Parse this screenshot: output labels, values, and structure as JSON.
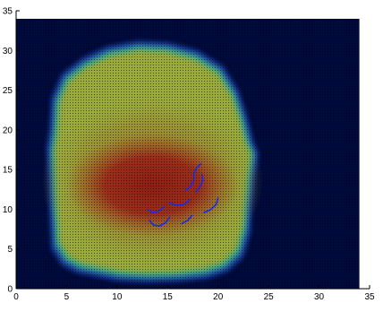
{
  "chart_data": {
    "type": "heatmap",
    "title": "",
    "xlabel": "",
    "ylabel": "",
    "xlim": [
      0,
      35
    ],
    "ylim": [
      0,
      35
    ],
    "x_ticks": [
      0,
      5,
      10,
      15,
      20,
      25,
      30,
      35
    ],
    "y_ticks": [
      0,
      5,
      10,
      15,
      20,
      25,
      30,
      35
    ],
    "x_tick_labels": [
      "0",
      "5",
      "10",
      "15",
      "20",
      "25",
      "30",
      "35"
    ],
    "y_tick_labels": [
      "0",
      "5",
      "10",
      "15",
      "20",
      "25",
      "30",
      "35"
    ],
    "grid": true,
    "data_extent": {
      "x": [
        0,
        34
      ],
      "y": [
        0,
        34
      ]
    },
    "background_color": "#000a3c",
    "colormap": [
      "#000f5a",
      "#1e4ab4",
      "#3caa8c",
      "#9aaa3a",
      "#b48c28",
      "#a0501e",
      "#8c1e14"
    ],
    "region": {
      "description_free": true,
      "outer_boundary": [
        [
          3.5,
          5
        ],
        [
          4.5,
          3
        ],
        [
          6,
          2
        ],
        [
          8,
          1.5
        ],
        [
          10,
          1
        ],
        [
          13,
          0.8
        ],
        [
          16,
          0.9
        ],
        [
          19,
          1.3
        ],
        [
          21,
          2.2
        ],
        [
          22.5,
          4
        ],
        [
          23.2,
          7
        ],
        [
          23.3,
          10
        ],
        [
          23.6,
          14
        ],
        [
          24,
          17
        ],
        [
          23.5,
          18.5
        ],
        [
          22.8,
          22
        ],
        [
          22,
          25
        ],
        [
          20.5,
          28
        ],
        [
          18,
          30
        ],
        [
          15,
          31
        ],
        [
          12,
          31.2
        ],
        [
          9,
          30.5
        ],
        [
          6.5,
          29
        ],
        [
          4.5,
          27
        ],
        [
          3.5,
          24
        ],
        [
          3.3,
          20
        ],
        [
          3,
          17.5
        ],
        [
          3.2,
          14
        ],
        [
          3.3,
          10
        ],
        [
          3.4,
          7
        ]
      ],
      "hot_core": {
        "cx": 13.5,
        "cy": 13,
        "rx": 8.5,
        "ry": 6.5,
        "value": 1.0
      },
      "warm_band": {
        "cx": 13.5,
        "cy": 13.5,
        "rx": 11,
        "ry": 11,
        "value": 0.6
      }
    },
    "contours": [
      {
        "points": [
          [
            13.2,
            8.6
          ],
          [
            13.6,
            8.0
          ],
          [
            14.2,
            7.9
          ],
          [
            14.8,
            8.3
          ],
          [
            15.2,
            9.0
          ]
        ]
      },
      {
        "points": [
          [
            13.0,
            10.0
          ],
          [
            13.5,
            9.6
          ],
          [
            14.2,
            9.8
          ],
          [
            14.6,
            10.3
          ]
        ]
      },
      {
        "points": [
          [
            15.2,
            10.8
          ],
          [
            15.8,
            10.5
          ],
          [
            16.6,
            10.6
          ],
          [
            17.2,
            11.2
          ]
        ]
      },
      {
        "points": [
          [
            16.8,
            12.4
          ],
          [
            17.3,
            12.9
          ],
          [
            17.6,
            13.7
          ],
          [
            17.6,
            14.5
          ],
          [
            17.9,
            15.3
          ],
          [
            18.3,
            15.7
          ]
        ]
      },
      {
        "points": [
          [
            17.8,
            12.2
          ],
          [
            18.2,
            12.8
          ],
          [
            18.5,
            13.6
          ],
          [
            18.4,
            14.4
          ]
        ]
      },
      {
        "points": [
          [
            18.6,
            9.6
          ],
          [
            19.2,
            9.9
          ],
          [
            19.8,
            10.6
          ],
          [
            20.0,
            11.4
          ]
        ]
      },
      {
        "points": [
          [
            16.4,
            8.2
          ],
          [
            17.0,
            8.6
          ],
          [
            17.4,
            9.2
          ]
        ]
      }
    ],
    "contour_color": "#1a2cff"
  }
}
